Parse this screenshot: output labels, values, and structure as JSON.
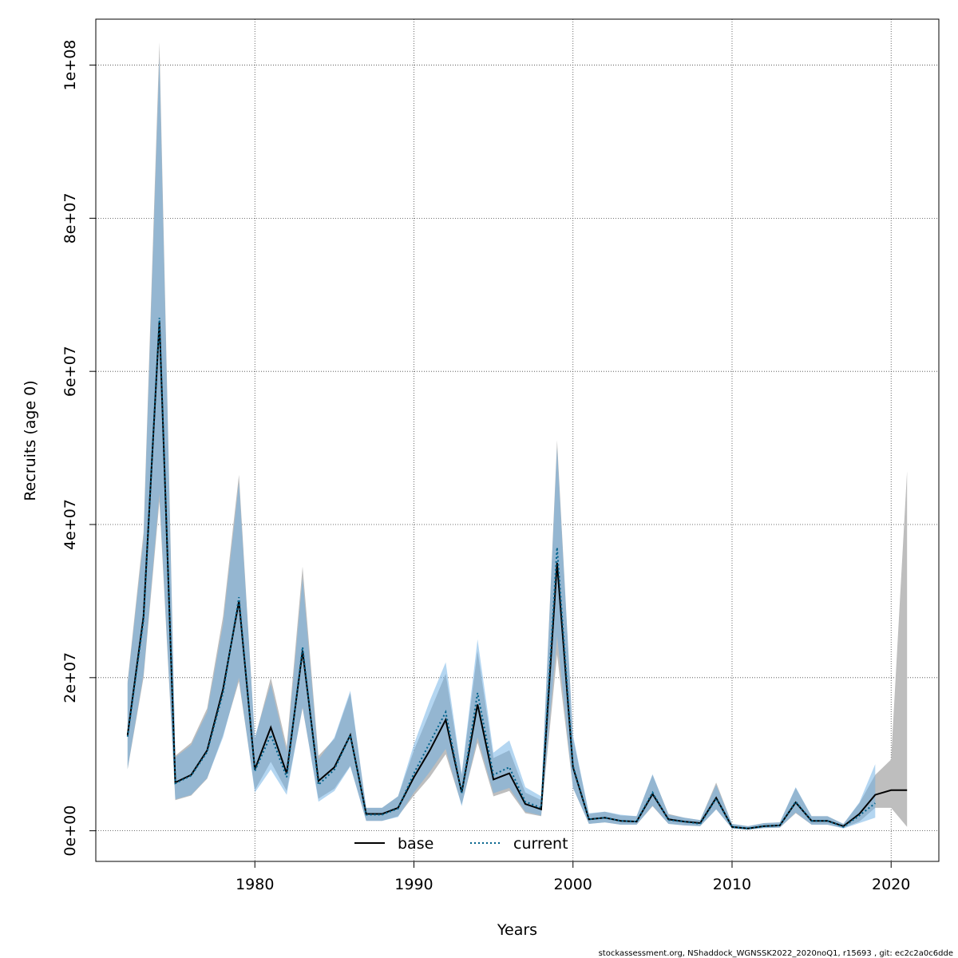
{
  "chart_data": {
    "type": "line",
    "xlabel": "Years",
    "ylabel": "Recruits (age 0)",
    "xlim": [
      1970.0,
      2023.0
    ],
    "ylim": [
      -4000000,
      106000000
    ],
    "x_ticks": [
      1980,
      1990,
      2000,
      2010,
      2020
    ],
    "x_tick_labels": [
      "1980",
      "1990",
      "2000",
      "2010",
      "2020"
    ],
    "y_ticks": [
      0,
      20000000,
      40000000,
      60000000,
      80000000,
      100000000
    ],
    "y_tick_labels": [
      "0e+00",
      "2e+07",
      "4e+07",
      "6e+07",
      "8e+07",
      "1e+08"
    ],
    "grid": true,
    "legend_position": "bottom",
    "footer": "stockassessment.org, NShaddock_WGNSSK2022_2020noQ1, r15693 , git: ec2c2a0c6dde",
    "series": [
      {
        "name": "base",
        "color": "#000000",
        "band_color": "#bebebe",
        "line_style": "solid",
        "x": [
          1972,
          1973,
          1974,
          1975,
          1976,
          1977,
          1978,
          1979,
          1980,
          1981,
          1982,
          1983,
          1984,
          1985,
          1986,
          1987,
          1988,
          1989,
          1990,
          1991,
          1992,
          1993,
          1994,
          1995,
          1996,
          1997,
          1998,
          1999,
          2000,
          2001,
          2002,
          2003,
          2004,
          2005,
          2006,
          2007,
          2008,
          2009,
          2010,
          2011,
          2012,
          2013,
          2014,
          2015,
          2016,
          2017,
          2018,
          2019,
          2020,
          2021
        ],
        "y": [
          12500000,
          28000000,
          66500000,
          6300000,
          7300000,
          10500000,
          18500000,
          30000000,
          8000000,
          13500000,
          7500000,
          23500000,
          6500000,
          8300000,
          12500000,
          2200000,
          2200000,
          3000000,
          7000000,
          10500000,
          14500000,
          5000000,
          16500000,
          6700000,
          7500000,
          3500000,
          2800000,
          35000000,
          8300000,
          1500000,
          1700000,
          1300000,
          1200000,
          4800000,
          1500000,
          1200000,
          1000000,
          4300000,
          500000,
          300000,
          600000,
          700000,
          3700000,
          1300000,
          1300000,
          600000,
          2200000,
          4700000,
          5300000,
          5300000
        ],
        "lower": [
          8000000,
          20000000,
          43000000,
          4000000,
          4600000,
          6800000,
          12500000,
          19500000,
          5300000,
          9000000,
          5200000,
          16000000,
          4200000,
          5500000,
          8500000,
          1300000,
          1300000,
          1900000,
          4600000,
          7000000,
          10000000,
          3400000,
          11500000,
          4500000,
          5200000,
          2300000,
          1900000,
          23000000,
          5600000,
          900000,
          1100000,
          800000,
          800000,
          3200000,
          900000,
          700000,
          600000,
          2800000,
          300000,
          150000,
          350000,
          400000,
          2300000,
          800000,
          800000,
          350000,
          1200000,
          3000000,
          3000000,
          500000
        ],
        "upper": [
          19500000,
          39000000,
          103000000,
          9800000,
          11500000,
          16000000,
          28000000,
          46500000,
          12000000,
          20000000,
          11000000,
          34500000,
          9800000,
          12000000,
          18000000,
          3000000,
          3000000,
          4500000,
          10500000,
          15500000,
          20500000,
          7300000,
          23500000,
          9500000,
          10500000,
          5000000,
          4000000,
          51000000,
          12200000,
          2200000,
          2500000,
          2000000,
          1900000,
          7300000,
          2200000,
          1700000,
          1400000,
          6300000,
          900000,
          600000,
          1000000,
          1100000,
          5600000,
          1900000,
          1900000,
          900000,
          3600000,
          7300000,
          9300000,
          47000000
        ]
      },
      {
        "name": "current",
        "color": "#00628b",
        "band_color": "#6aaee3",
        "line_style": "dotted",
        "x": [
          1972,
          1973,
          1974,
          1975,
          1976,
          1977,
          1978,
          1979,
          1980,
          1981,
          1982,
          1983,
          1984,
          1985,
          1986,
          1987,
          1988,
          1989,
          1990,
          1991,
          1992,
          1993,
          1994,
          1995,
          1996,
          1997,
          1998,
          1999,
          2000,
          2001,
          2002,
          2003,
          2004,
          2005,
          2006,
          2007,
          2008,
          2009,
          2010,
          2011,
          2012,
          2013,
          2014,
          2015,
          2016,
          2017,
          2018,
          2019
        ],
        "y": [
          12300000,
          27500000,
          67000000,
          6200000,
          7200000,
          10300000,
          18000000,
          30500000,
          7800000,
          12500000,
          7000000,
          24000000,
          6000000,
          8000000,
          12500000,
          2100000,
          2100000,
          2900000,
          7500000,
          11500000,
          15500000,
          4900000,
          18000000,
          7300000,
          8300000,
          3800000,
          3000000,
          37000000,
          8500000,
          1500000,
          1700000,
          1300000,
          1200000,
          5000000,
          1400000,
          1200000,
          900000,
          4200000,
          500000,
          300000,
          600000,
          700000,
          3800000,
          1300000,
          1300000,
          500000,
          2000000,
          3600000
        ],
        "lower": [
          8100000,
          20500000,
          44000000,
          4100000,
          4700000,
          6900000,
          12200000,
          20000000,
          5000000,
          8000000,
          4700000,
          16200000,
          3800000,
          5200000,
          8400000,
          1300000,
          1300000,
          1800000,
          5000000,
          7700000,
          10700000,
          3200000,
          12200000,
          4900000,
          5600000,
          2500000,
          2000000,
          25500000,
          5600000,
          900000,
          1100000,
          800000,
          800000,
          3300000,
          900000,
          700000,
          600000,
          2800000,
          300000,
          150000,
          350000,
          400000,
          2400000,
          800000,
          800000,
          300000,
          1000000,
          1700000
        ],
        "upper": [
          19200000,
          38000000,
          101000000,
          9600000,
          11200000,
          15500000,
          27000000,
          45500000,
          12200000,
          19200000,
          10300000,
          33000000,
          9300000,
          12200000,
          18300000,
          3000000,
          3000000,
          4500000,
          11300000,
          17000000,
          22000000,
          7400000,
          25000000,
          10200000,
          11800000,
          5700000,
          4500000,
          50000000,
          12500000,
          2300000,
          2500000,
          2100000,
          1900000,
          7400000,
          2100000,
          1700000,
          1400000,
          6000000,
          900000,
          600000,
          1000000,
          1100000,
          5700000,
          1900000,
          1900000,
          900000,
          3700000,
          8700000
        ]
      }
    ]
  }
}
